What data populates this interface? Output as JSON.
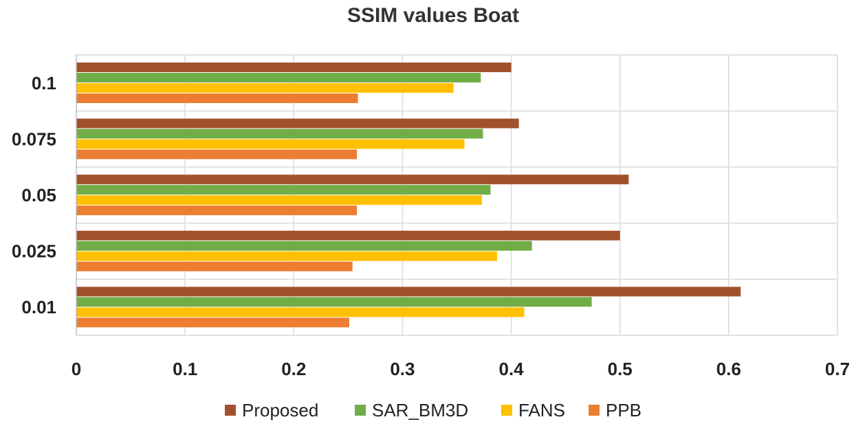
{
  "chart_data": {
    "type": "bar",
    "orientation": "horizontal",
    "title": "SSIM values Boat",
    "xlabel": "",
    "ylabel": "",
    "categories": [
      "0.1",
      "0.075",
      "0.05",
      "0.025",
      "0.01"
    ],
    "xlim": [
      0,
      0.7
    ],
    "x_ticks": [
      "0",
      "0.1",
      "0.2",
      "0.3",
      "0.4",
      "0.5",
      "0.6",
      "0.7"
    ],
    "grid": true,
    "legend_position": "bottom",
    "series": [
      {
        "name": "Proposed",
        "color": "#A0522D",
        "values": [
          0.4,
          0.407,
          0.508,
          0.5,
          0.611
        ]
      },
      {
        "name": "SAR_BM3D",
        "color": "#70AD47",
        "values": [
          0.372,
          0.374,
          0.381,
          0.419,
          0.474
        ]
      },
      {
        "name": "FANS",
        "color": "#FFC000",
        "values": [
          0.347,
          0.357,
          0.373,
          0.387,
          0.412
        ]
      },
      {
        "name": "PPB",
        "color": "#ED7D31",
        "values": [
          0.259,
          0.258,
          0.258,
          0.254,
          0.251
        ]
      }
    ]
  }
}
